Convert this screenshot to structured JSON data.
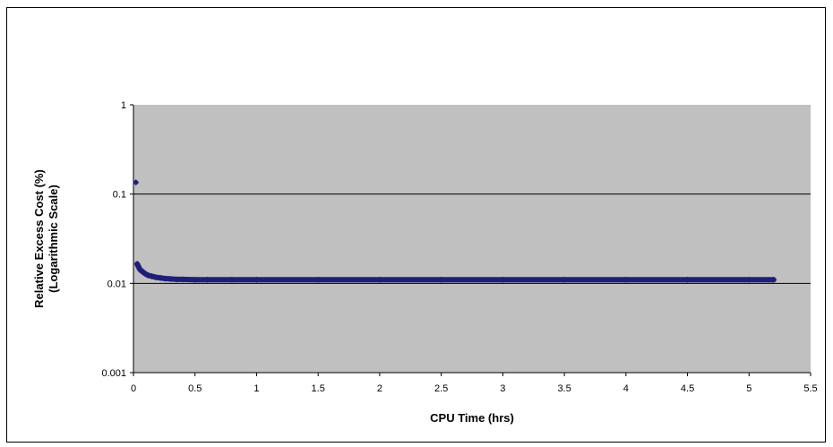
{
  "chart_data": {
    "type": "scatter",
    "title": "",
    "xlabel": "CPU Time (hrs)",
    "ylabel_line1": "Relative Excess Cost (%)",
    "ylabel_line2": "(Logarithmic Scale)",
    "xlim": [
      0,
      5.5
    ],
    "ylim": [
      0.001,
      1
    ],
    "y_scale": "log",
    "x_ticks": [
      "0",
      "0.5",
      "1",
      "1.5",
      "2",
      "2.5",
      "3",
      "3.5",
      "4",
      "4.5",
      "5",
      "5.5"
    ],
    "y_ticks": [
      "1",
      "0.1",
      "0.01",
      "0.001"
    ],
    "grid": "horizontal",
    "legend": "none",
    "colors": {
      "plot_bg": "#c0c0c0",
      "marker": "#1f1f7a",
      "gridline": "#000000"
    },
    "series": [
      {
        "marker": "diamond",
        "points": [
          [
            0.02,
            0.135
          ],
          [
            0.03,
            0.0165
          ],
          [
            0.04,
            0.0155
          ],
          [
            0.05,
            0.0145
          ],
          [
            0.06,
            0.014
          ],
          [
            0.08,
            0.0133
          ],
          [
            0.1,
            0.0127
          ],
          [
            0.12,
            0.0123
          ],
          [
            0.15,
            0.012
          ],
          [
            0.18,
            0.0117
          ],
          [
            0.22,
            0.0115
          ],
          [
            0.26,
            0.0113
          ],
          [
            0.3,
            0.0112
          ],
          [
            0.35,
            0.0111
          ],
          [
            0.4,
            0.0111
          ],
          [
            0.5,
            0.011
          ],
          [
            0.6,
            0.011
          ],
          [
            0.8,
            0.011
          ],
          [
            1.0,
            0.011
          ],
          [
            1.5,
            0.011
          ],
          [
            2.0,
            0.011
          ],
          [
            2.5,
            0.011
          ],
          [
            3.0,
            0.011
          ],
          [
            3.5,
            0.011
          ],
          [
            4.0,
            0.011
          ],
          [
            4.5,
            0.011
          ],
          [
            5.0,
            0.011
          ],
          [
            5.2,
            0.011
          ]
        ]
      }
    ]
  }
}
